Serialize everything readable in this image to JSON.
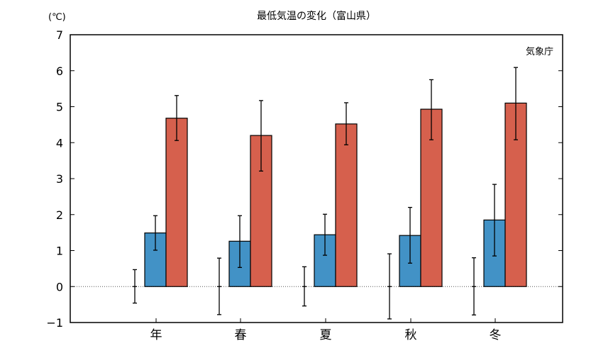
{
  "chart_data": {
    "type": "bar",
    "title": "最低気温の変化（富山県）",
    "ylabel": "(℃)",
    "annotation": "気象庁",
    "categories": [
      "年",
      "春",
      "夏",
      "秋",
      "冬"
    ],
    "ylim": [
      -1,
      7
    ],
    "yticks": [
      -1,
      0,
      1,
      2,
      3,
      4,
      5,
      6,
      7
    ],
    "reference_line": 0,
    "zero_error": [
      [
        -0.46,
        0.47
      ],
      [
        -0.78,
        0.79
      ],
      [
        -0.54,
        0.55
      ],
      [
        -0.9,
        0.91
      ],
      [
        -0.79,
        0.8
      ]
    ],
    "series": [
      {
        "color": "#4292c6",
        "values": [
          1.49,
          1.26,
          1.44,
          1.42,
          1.85
        ],
        "error": [
          [
            1.01,
            1.97
          ],
          [
            0.53,
            1.97
          ],
          [
            0.87,
            2.01
          ],
          [
            0.65,
            2.2
          ],
          [
            0.85,
            2.84
          ]
        ]
      },
      {
        "color": "#d6604d",
        "values": [
          4.68,
          4.2,
          4.52,
          4.93,
          5.1
        ],
        "error": [
          [
            4.06,
            5.31
          ],
          [
            3.21,
            5.17
          ],
          [
            3.94,
            5.11
          ],
          [
            4.08,
            5.75
          ],
          [
            4.08,
            6.09
          ]
        ]
      }
    ]
  }
}
